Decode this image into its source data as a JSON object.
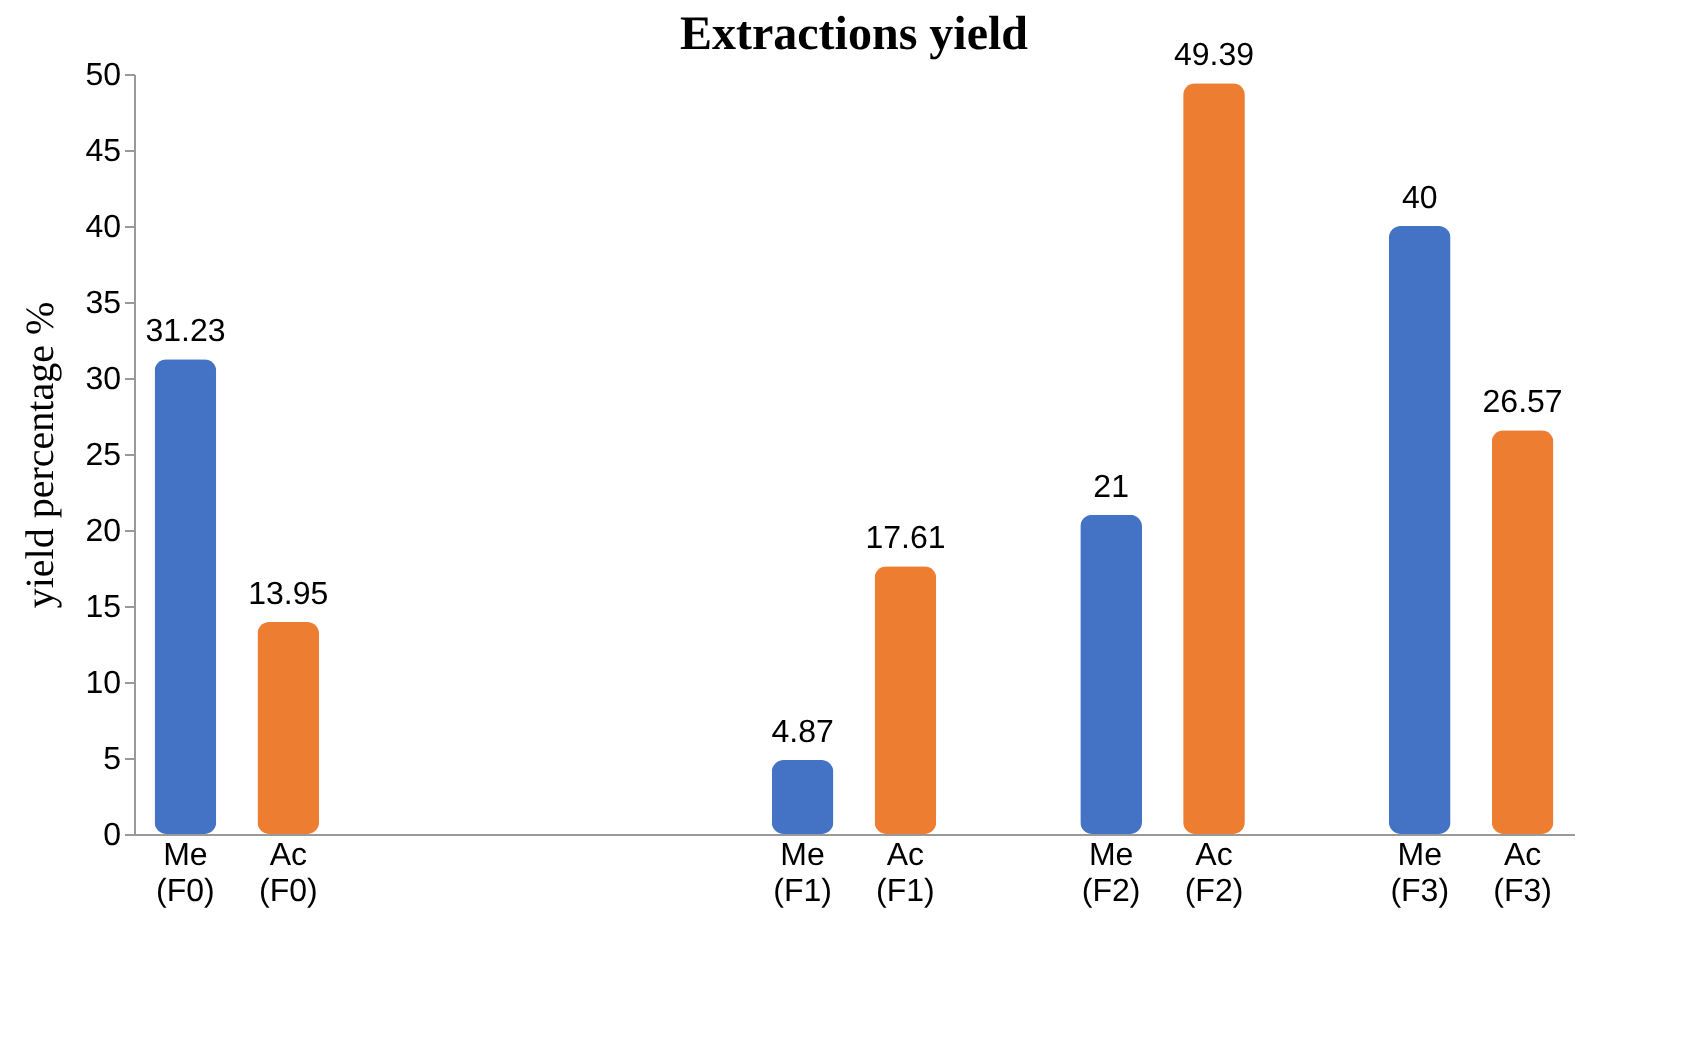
{
  "chart_data": {
    "type": "bar",
    "title": "Extractions yield",
    "ylabel": "yield percentage %",
    "categories": [
      "Me (F0)",
      "Ac (F0)",
      null,
      null,
      null,
      null,
      "Me (F1)",
      "Ac (F1)",
      null,
      "Me (F2)",
      "Ac (F2)",
      null,
      "Me (F3)",
      "Ac (F3)"
    ],
    "values": [
      31.23,
      13.95,
      null,
      null,
      null,
      null,
      4.87,
      17.61,
      null,
      21,
      49.39,
      null,
      40,
      26.57
    ],
    "colors": [
      "#4472c4",
      "#ed7d31",
      "#4472c4",
      "#4472c4",
      "#4472c4",
      "#4472c4",
      "#4472c4",
      "#ed7d31",
      "#4472c4",
      "#4472c4",
      "#ed7d31",
      "#4472c4",
      "#4472c4",
      "#ed7d31"
    ],
    "ylim": [
      0,
      50
    ],
    "yticks": [
      0,
      5,
      10,
      15,
      20,
      25,
      30,
      35,
      40,
      45,
      50
    ],
    "data_labels": true
  }
}
